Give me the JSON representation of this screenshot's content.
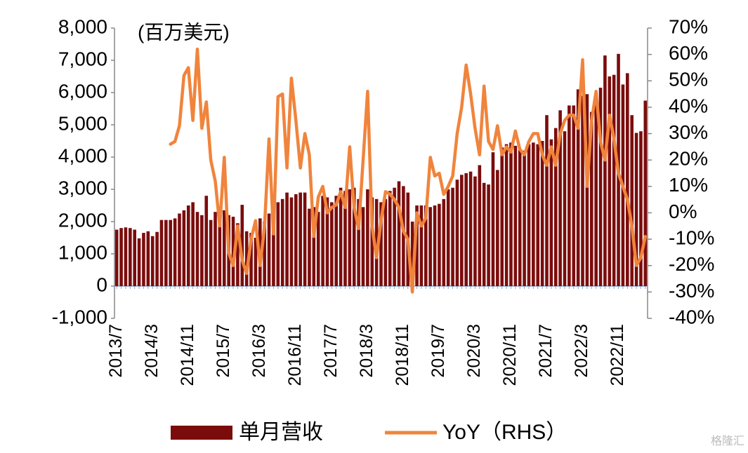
{
  "chart_data": {
    "type": "bar_line",
    "unit_label": "(百万美元)",
    "watermark": "格隆汇",
    "categories": [
      "2013/7",
      null,
      null,
      null,
      null,
      null,
      null,
      null,
      "2014/3",
      null,
      null,
      null,
      null,
      null,
      null,
      null,
      "2014/11",
      null,
      null,
      null,
      null,
      null,
      null,
      null,
      "2015/7",
      null,
      null,
      null,
      null,
      null,
      null,
      null,
      "2016/3",
      null,
      null,
      null,
      null,
      null,
      null,
      null,
      "2016/11",
      null,
      null,
      null,
      null,
      null,
      null,
      null,
      "2017/7",
      null,
      null,
      null,
      null,
      null,
      null,
      null,
      "2018/3",
      null,
      null,
      null,
      null,
      null,
      null,
      null,
      "2018/11",
      null,
      null,
      null,
      null,
      null,
      null,
      null,
      "2019/7",
      null,
      null,
      null,
      null,
      null,
      null,
      null,
      "2020/3",
      null,
      null,
      null,
      null,
      null,
      null,
      null,
      "2020/11",
      null,
      null,
      null,
      null,
      null,
      null,
      null,
      "2021/7",
      null,
      null,
      null,
      null,
      null,
      null,
      null,
      "2022/3",
      null,
      null,
      null,
      null,
      null,
      null,
      null,
      "2022/11",
      null,
      null,
      null,
      null,
      null,
      null
    ],
    "series": [
      {
        "name": "单月营收",
        "color": "#7b0c0c",
        "axis": "y",
        "values": [
          1750,
          1800,
          1820,
          1800,
          1750,
          1480,
          1650,
          1700,
          1550,
          1680,
          2050,
          2050,
          2050,
          2100,
          2250,
          2350,
          2500,
          2600,
          2300,
          2200,
          2800,
          2050,
          2300,
          2450,
          2350,
          2200,
          2150,
          1950,
          2520,
          1700,
          1650,
          1500,
          2100,
          2000,
          2250,
          2100,
          2600,
          2700,
          2900,
          2750,
          2850,
          2900,
          2900,
          2400,
          2450,
          2300,
          2800,
          2750,
          2600,
          2800,
          3050,
          2950,
          3000,
          3050,
          2700,
          2450,
          3000,
          2750,
          2700,
          2600,
          2700,
          2950,
          3050,
          3250,
          3100,
          2900,
          2000,
          2500,
          2500,
          2500,
          2450,
          2500,
          2550,
          2700,
          3000,
          3050,
          3300,
          3450,
          3500,
          3550,
          3400,
          3750,
          3200,
          3150,
          4150,
          3600,
          4300,
          4400,
          4450,
          4350,
          4250,
          4200,
          4400,
          4450,
          4400,
          4500,
          5300,
          4550,
          4900,
          5450,
          4800,
          5600,
          5600,
          6100,
          5900,
          5950,
          5400,
          5750,
          6150,
          7150,
          6500,
          6550,
          7200,
          6250,
          6600,
          5300,
          4750,
          4800,
          5750
        ]
      },
      {
        "name": "YoY（RHS）",
        "color": "#f0843c",
        "axis": "y2",
        "values": [
          null,
          null,
          null,
          null,
          null,
          null,
          null,
          null,
          null,
          null,
          null,
          null,
          26,
          27,
          33,
          52,
          55,
          35,
          62,
          32,
          42,
          20,
          12,
          -5,
          21,
          -15,
          -20,
          -5,
          -18,
          -23,
          -10,
          -3,
          -20,
          -5,
          28,
          -8,
          44,
          45,
          17,
          51,
          35,
          17,
          30,
          22,
          -9,
          6,
          10,
          0,
          2,
          3,
          8,
          2,
          25,
          2,
          -6,
          20,
          46,
          -5,
          -17,
          -3,
          8,
          7,
          5,
          2,
          -7,
          -10,
          -30,
          0,
          -5,
          -2,
          21,
          14,
          15,
          7,
          10,
          14,
          30,
          40,
          56,
          45,
          32,
          22,
          48,
          27,
          24,
          33,
          22,
          25,
          23,
          31,
          24,
          22,
          27,
          30,
          30,
          22,
          18,
          25,
          18,
          30,
          35,
          37,
          37,
          32,
          58,
          10,
          35,
          46,
          27,
          20,
          37,
          28,
          15,
          10,
          5,
          -5,
          -20,
          -17,
          -9
        ]
      }
    ],
    "ylim": [
      -1000,
      8000
    ],
    "yticks": [
      {
        "value": -1000,
        "label": "-1,000"
      },
      0,
      {
        "value": 1000,
        "label": "1,000"
      },
      {
        "value": 2000,
        "label": "2,000"
      },
      {
        "value": 3000,
        "label": "3,000"
      },
      {
        "value": 4000,
        "label": "4,000"
      },
      {
        "value": 5000,
        "label": "5,000"
      },
      {
        "value": 6000,
        "label": "6,000"
      },
      {
        "value": 7000,
        "label": "7,000"
      },
      {
        "value": 8000,
        "label": "8,000"
      }
    ],
    "y2lim": [
      -40,
      70
    ],
    "y2ticks": [
      {
        "value": -40,
        "label": "-40%"
      },
      {
        "value": -30,
        "label": "-30%"
      },
      {
        "value": -20,
        "label": "-20%"
      },
      {
        "value": -10,
        "label": "-10%"
      },
      {
        "value": 0,
        "label": "0%"
      },
      {
        "value": 10,
        "label": "10%"
      },
      {
        "value": 20,
        "label": "20%"
      },
      {
        "value": 30,
        "label": "30%"
      },
      {
        "value": 40,
        "label": "40%"
      },
      {
        "value": 50,
        "label": "50%"
      },
      {
        "value": 60,
        "label": "60%"
      },
      {
        "value": 70,
        "label": "70%"
      }
    ],
    "grid": false
  }
}
